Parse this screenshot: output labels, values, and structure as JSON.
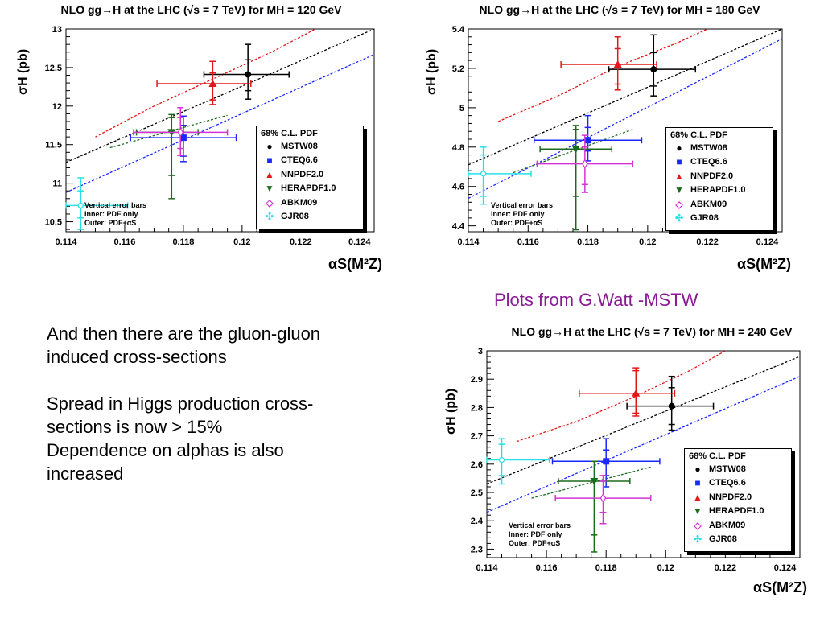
{
  "caption": "Plots from G.Watt -MSTW",
  "text_block": {
    "para1_line1": "And then there are the gluon-gluon",
    "para1_line2": "induced cross-sections",
    "para2_line1": "Spread in Higgs production cross-",
    "para2_line2": "sections is now > 15%",
    "para2_line3": "Dependence on alphas is also",
    "para2_line4": "increased"
  },
  "legend_common": {
    "header": "68% C.L. PDF",
    "entries": [
      "MSTW08",
      "CTEQ6.6",
      "NNPDF2.0",
      "HERAPDF1.0",
      "ABKM09",
      "GJR08"
    ]
  },
  "errnote": {
    "line1": "Vertical error bars",
    "line2": "Inner: PDF only",
    "line3": "Outer: PDF+αS"
  },
  "chart_data": [
    {
      "type": "scatter",
      "title": "NLO gg→H at the LHC (√s = 7 TeV) for MH = 120 GeV",
      "ylabel": "σH (pb)",
      "xlabel": "αS(M²Z)",
      "xlim": [
        0.114,
        0.1245
      ],
      "ylim": [
        10.37,
        13.0
      ],
      "xticks": [
        0.114,
        0.116,
        0.118,
        0.12,
        0.122,
        0.124
      ],
      "yticks": [
        10.5,
        11,
        11.5,
        12,
        12.5,
        13
      ],
      "grid": false,
      "legend_position": "bottom-right",
      "points": [
        {
          "name": "MSTW08",
          "color": "#000000",
          "marker": "circle",
          "x": 0.1202,
          "y": 12.41,
          "xerr": [
            0.1187,
            0.1216
          ],
          "yinner": [
            12.2,
            12.6
          ],
          "youter": [
            12.09,
            12.8
          ]
        },
        {
          "name": "CTEQ6.6",
          "color": "#1a28ff",
          "marker": "square",
          "x": 0.118,
          "y": 11.59,
          "xerr": [
            0.1162,
            0.1198
          ],
          "yinner": [
            11.35,
            11.75
          ],
          "youter": [
            11.28,
            11.87
          ]
        },
        {
          "name": "NNPDF2.0",
          "color": "#e0181a",
          "marker": "triangle-up",
          "x": 0.119,
          "y": 12.29,
          "xerr": [
            0.1171,
            0.1203
          ],
          "yinner": [
            12.08,
            12.43
          ],
          "youter": [
            12.02,
            12.58
          ]
        },
        {
          "name": "HERAPDF1.0",
          "color": "#1c6b1c",
          "marker": "triangle-down",
          "x": 0.1176,
          "y": 11.66,
          "xerr": [
            0.1164,
            0.1185
          ],
          "yinner": [
            11.1,
            11.85
          ],
          "youter": [
            10.8,
            11.89
          ]
        },
        {
          "name": "ABKM09",
          "color": "#d633d6",
          "marker": "diamond",
          "x": 0.1179,
          "y": 11.66,
          "xerr": [
            0.1163,
            0.1195
          ],
          "yinner": [
            11.45,
            11.85
          ],
          "youter": [
            11.36,
            11.98
          ]
        },
        {
          "name": "GJR08",
          "color": "#26e0ea",
          "marker": "cross",
          "x": 0.1145,
          "y": 10.71,
          "xerr": [
            0.114,
            0.1161
          ],
          "yinner": [
            10.55,
            10.9
          ],
          "youter": [
            10.4,
            11.07
          ]
        }
      ],
      "lines": [
        {
          "name": "MSTW08",
          "color": "#000000",
          "points": [
            [
              0.114,
              11.27
            ],
            [
              0.1245,
              13.0
            ]
          ]
        },
        {
          "name": "CTEQ6.6",
          "color": "#1a28ff",
          "points": [
            [
              0.114,
              10.88
            ],
            [
              0.1245,
              12.67
            ]
          ]
        },
        {
          "name": "NNPDF2.0",
          "color": "#e0181a",
          "points": [
            [
              0.115,
              11.6
            ],
            [
              0.117,
              12.0
            ],
            [
              0.119,
              12.35
            ],
            [
              0.121,
              12.7
            ],
            [
              0.1225,
              13.0
            ]
          ]
        },
        {
          "name": "HERAPDF1.0",
          "color": "#1c6b1c",
          "points": [
            [
              0.1155,
              11.46
            ],
            [
              0.1195,
              11.88
            ]
          ]
        }
      ]
    },
    {
      "type": "scatter",
      "title": "NLO gg→H at the LHC (√s = 7 TeV) for MH = 180 GeV",
      "ylabel": "σH (pb)",
      "xlabel": "αS(M²Z)",
      "xlim": [
        0.114,
        0.1245
      ],
      "ylim": [
        4.37,
        5.4
      ],
      "xticks": [
        0.114,
        0.116,
        0.118,
        0.12,
        0.122,
        0.124
      ],
      "yticks": [
        4.4,
        4.6,
        4.8,
        5,
        5.2,
        5.4
      ],
      "grid": false,
      "legend_position": "bottom-right",
      "points": [
        {
          "name": "MSTW08",
          "color": "#000000",
          "marker": "circle",
          "x": 0.1202,
          "y": 5.195,
          "xerr": [
            0.1187,
            0.1216
          ],
          "yinner": [
            5.11,
            5.28
          ],
          "youter": [
            5.06,
            5.37
          ]
        },
        {
          "name": "CTEQ6.6",
          "color": "#1a28ff",
          "marker": "square",
          "x": 0.118,
          "y": 4.835,
          "xerr": [
            0.1162,
            0.1198
          ],
          "yinner": [
            4.78,
            4.9
          ],
          "youter": [
            4.73,
            4.96
          ]
        },
        {
          "name": "NNPDF2.0",
          "color": "#e0181a",
          "marker": "triangle-up",
          "x": 0.119,
          "y": 5.22,
          "xerr": [
            0.1171,
            0.1203
          ],
          "yinner": [
            5.12,
            5.3
          ],
          "youter": [
            5.09,
            5.36
          ]
        },
        {
          "name": "HERAPDF1.0",
          "color": "#1c6b1c",
          "marker": "triangle-down",
          "x": 0.1176,
          "y": 4.79,
          "xerr": [
            0.1164,
            0.1188
          ],
          "yinner": [
            4.55,
            4.89
          ],
          "youter": [
            4.38,
            4.91
          ]
        },
        {
          "name": "ABKM09",
          "color": "#d633d6",
          "marker": "diamond",
          "x": 0.1179,
          "y": 4.715,
          "xerr": [
            0.1163,
            0.1195
          ],
          "yinner": [
            4.61,
            4.8
          ],
          "youter": [
            4.57,
            4.86
          ]
        },
        {
          "name": "GJR08",
          "color": "#26e0ea",
          "marker": "cross",
          "x": 0.1145,
          "y": 4.665,
          "xerr": [
            0.114,
            0.1161
          ],
          "yinner": [
            4.55,
            4.76
          ],
          "youter": [
            4.51,
            4.8
          ]
        }
      ],
      "lines": [
        {
          "name": "MSTW08",
          "color": "#000000",
          "points": [
            [
              0.114,
              4.71
            ],
            [
              0.1245,
              5.4
            ]
          ]
        },
        {
          "name": "CTEQ6.6",
          "color": "#1a28ff",
          "points": [
            [
              0.114,
              4.54
            ],
            [
              0.1245,
              5.35
            ]
          ]
        },
        {
          "name": "NNPDF2.0",
          "color": "#e0181a",
          "points": [
            [
              0.115,
              4.93
            ],
            [
              0.117,
              5.06
            ],
            [
              0.119,
              5.21
            ],
            [
              0.121,
              5.33
            ],
            [
              0.122,
              5.4
            ]
          ]
        },
        {
          "name": "HERAPDF1.0",
          "color": "#1c6b1c",
          "points": [
            [
              0.1155,
              4.67
            ],
            [
              0.1195,
              4.89
            ]
          ]
        }
      ]
    },
    {
      "type": "scatter",
      "title": "NLO gg→H at the LHC (√s = 7 TeV) for MH = 240 GeV",
      "ylabel": "σH (pb)",
      "xlabel": "αS(M²Z)",
      "xlim": [
        0.114,
        0.1245
      ],
      "ylim": [
        2.27,
        3.0
      ],
      "xticks": [
        0.114,
        0.116,
        0.118,
        0.12,
        0.122,
        0.124
      ],
      "yticks": [
        2.3,
        2.4,
        2.5,
        2.6,
        2.7,
        2.8,
        2.9,
        3
      ],
      "grid": false,
      "legend_position": "bottom-right",
      "points": [
        {
          "name": "MSTW08",
          "color": "#000000",
          "marker": "circle",
          "x": 0.1202,
          "y": 2.805,
          "xerr": [
            0.1187,
            0.1216
          ],
          "yinner": [
            2.74,
            2.87
          ],
          "youter": [
            2.72,
            2.91
          ]
        },
        {
          "name": "CTEQ6.6",
          "color": "#1a28ff",
          "marker": "square",
          "x": 0.118,
          "y": 2.61,
          "xerr": [
            0.1162,
            0.1198
          ],
          "yinner": [
            2.56,
            2.65
          ],
          "youter": [
            2.52,
            2.69
          ]
        },
        {
          "name": "NNPDF2.0",
          "color": "#e0181a",
          "marker": "triangle-up",
          "x": 0.119,
          "y": 2.85,
          "xerr": [
            0.1171,
            0.1203
          ],
          "yinner": [
            2.78,
            2.93
          ],
          "youter": [
            2.77,
            2.94
          ]
        },
        {
          "name": "HERAPDF1.0",
          "color": "#1c6b1c",
          "marker": "triangle-down",
          "x": 0.1176,
          "y": 2.54,
          "xerr": [
            0.1164,
            0.1188
          ],
          "yinner": [
            2.35,
            2.61
          ],
          "youter": [
            2.29,
            2.61
          ]
        },
        {
          "name": "ABKM09",
          "color": "#d633d6",
          "marker": "diamond",
          "x": 0.1179,
          "y": 2.48,
          "xerr": [
            0.1163,
            0.1195
          ],
          "yinner": [
            2.43,
            2.54
          ],
          "youter": [
            2.39,
            2.56
          ]
        },
        {
          "name": "GJR08",
          "color": "#26e0ea",
          "marker": "cross",
          "x": 0.1145,
          "y": 2.615,
          "xerr": [
            0.114,
            0.1161
          ],
          "yinner": [
            2.56,
            2.67
          ],
          "youter": [
            2.53,
            2.69
          ]
        }
      ],
      "lines": [
        {
          "name": "MSTW08",
          "color": "#000000",
          "points": [
            [
              0.114,
              2.53
            ],
            [
              0.1245,
              2.98
            ]
          ]
        },
        {
          "name": "CTEQ6.6",
          "color": "#1a28ff",
          "points": [
            [
              0.114,
              2.43
            ],
            [
              0.1245,
              2.91
            ]
          ]
        },
        {
          "name": "NNPDF2.0",
          "color": "#e0181a",
          "points": [
            [
              0.115,
              2.68
            ],
            [
              0.117,
              2.75
            ],
            [
              0.119,
              2.84
            ],
            [
              0.1208,
              2.93
            ],
            [
              0.122,
              3.0
            ]
          ]
        },
        {
          "name": "HERAPDF1.0",
          "color": "#1c6b1c",
          "points": [
            [
              0.1155,
              2.48
            ],
            [
              0.1195,
              2.59
            ]
          ]
        }
      ]
    }
  ]
}
